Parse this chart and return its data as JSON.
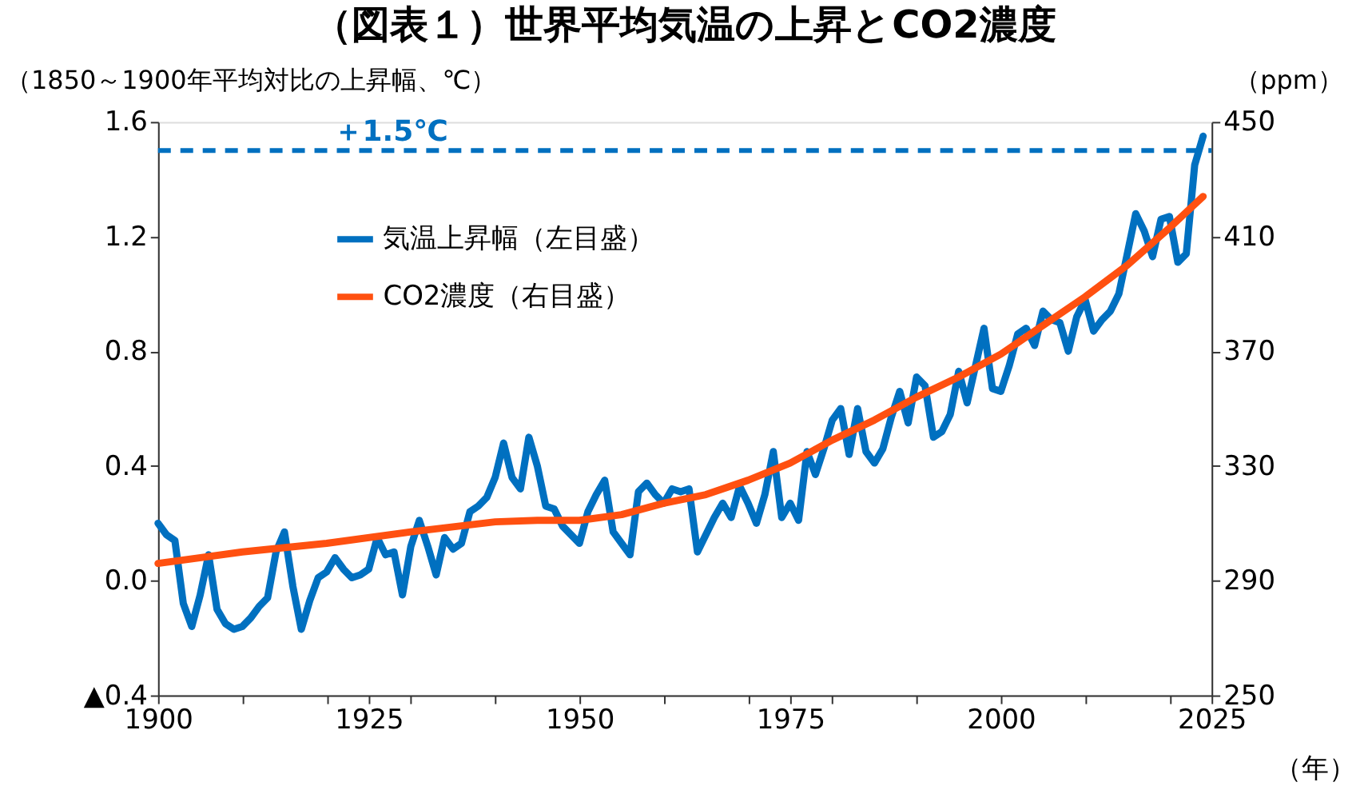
{
  "chart_data": {
    "type": "line",
    "title": "（図表１）世界平均気温の上昇とCO2濃度",
    "ylabel": "（1850～1900年平均対比の上昇幅、℃）",
    "y2label": "（ppm）",
    "xlabel": "（年）",
    "xlim": [
      1900,
      2025
    ],
    "xticks": [
      1900,
      {
        "value": 1910,
        "label": null
      },
      {
        "value": 1920,
        "label": null
      },
      1925,
      {
        "value": 1930,
        "label": null
      },
      {
        "value": 1940,
        "label": null
      },
      1950,
      {
        "value": 1960,
        "label": null
      },
      {
        "value": 1970,
        "label": null
      },
      1975,
      {
        "value": 1980,
        "label": null
      },
      {
        "value": 1990,
        "label": null
      },
      2000,
      {
        "value": 2010,
        "label": null
      },
      {
        "value": 2020,
        "label": null
      },
      2025
    ],
    "ylim": [
      -0.4,
      1.6
    ],
    "yticks": [
      {
        "value": -0.4,
        "label": "▲0.4"
      },
      {
        "value": 0,
        "label": "0.0"
      },
      0.4,
      0.8,
      1.2,
      1.6
    ],
    "y2lim": [
      250,
      450
    ],
    "y2ticks": [
      250,
      290,
      330,
      370,
      410,
      450
    ],
    "grid": false,
    "legend": "top left",
    "line_style": "solid",
    "marker": "none",
    "ref_lines": [
      {
        "axis": "y",
        "value": 1.5,
        "label": "＋1.5℃",
        "color": "#0070c0",
        "line_style": "dashed"
      }
    ],
    "series": [
      {
        "name": "気温上昇幅（左目盛）",
        "color": "#0070c0",
        "x": [
          1900,
          1901,
          1902,
          1903,
          1904,
          1905,
          1906,
          1907,
          1908,
          1909,
          1910,
          1911,
          1912,
          1913,
          1914,
          1915,
          1916,
          1917,
          1918,
          1919,
          1920,
          1921,
          1922,
          1923,
          1924,
          1925,
          1926,
          1927,
          1928,
          1929,
          1930,
          1931,
          1932,
          1933,
          1934,
          1935,
          1936,
          1937,
          1938,
          1939,
          1940,
          1941,
          1942,
          1943,
          1944,
          1945,
          1946,
          1947,
          1948,
          1949,
          1950,
          1951,
          1952,
          1953,
          1954,
          1955,
          1956,
          1957,
          1958,
          1959,
          1960,
          1961,
          1962,
          1963,
          1964,
          1965,
          1966,
          1967,
          1968,
          1969,
          1970,
          1971,
          1972,
          1973,
          1974,
          1975,
          1976,
          1977,
          1978,
          1979,
          1980,
          1981,
          1982,
          1983,
          1984,
          1985,
          1986,
          1987,
          1988,
          1989,
          1990,
          1991,
          1992,
          1993,
          1994,
          1995,
          1996,
          1997,
          1998,
          1999,
          2000,
          2001,
          2002,
          2003,
          2004,
          2005,
          2006,
          2007,
          2008,
          2009,
          2010,
          2011,
          2012,
          2013,
          2014,
          2015,
          2016,
          2017,
          2018,
          2019,
          2020,
          2021,
          2022,
          2023,
          2024
        ],
        "values": [
          0.2,
          0.16,
          0.14,
          -0.08,
          -0.16,
          -0.05,
          0.09,
          -0.1,
          -0.15,
          -0.17,
          -0.16,
          -0.13,
          -0.09,
          -0.06,
          0.1,
          0.17,
          -0.02,
          -0.17,
          -0.07,
          0.01,
          0.03,
          0.08,
          0.04,
          0.01,
          0.02,
          0.04,
          0.15,
          0.09,
          0.1,
          -0.05,
          0.12,
          0.21,
          0.12,
          0.02,
          0.15,
          0.11,
          0.13,
          0.24,
          0.26,
          0.29,
          0.36,
          0.48,
          0.36,
          0.32,
          0.5,
          0.4,
          0.26,
          0.25,
          0.19,
          0.16,
          0.13,
          0.24,
          0.3,
          0.35,
          0.17,
          0.13,
          0.09,
          0.31,
          0.34,
          0.3,
          0.27,
          0.32,
          0.31,
          0.32,
          0.1,
          0.16,
          0.22,
          0.27,
          0.22,
          0.33,
          0.27,
          0.2,
          0.3,
          0.45,
          0.22,
          0.27,
          0.21,
          0.45,
          0.37,
          0.46,
          0.56,
          0.6,
          0.44,
          0.6,
          0.45,
          0.41,
          0.46,
          0.57,
          0.66,
          0.55,
          0.71,
          0.68,
          0.5,
          0.52,
          0.58,
          0.73,
          0.62,
          0.75,
          0.88,
          0.67,
          0.66,
          0.75,
          0.86,
          0.88,
          0.82,
          0.94,
          0.91,
          0.9,
          0.8,
          0.92,
          0.98,
          0.87,
          0.91,
          0.94,
          1.0,
          1.14,
          1.28,
          1.22,
          1.13,
          1.26,
          1.27,
          1.11,
          1.14,
          1.45,
          1.55
        ]
      },
      {
        "name": "CO2濃度（右目盛）",
        "color": "#ff5010",
        "axis": "y2",
        "x": [
          1900,
          1910,
          1920,
          1930,
          1940,
          1945,
          1950,
          1955,
          1960,
          1965,
          1970,
          1975,
          1980,
          1985,
          1990,
          1995,
          2000,
          2005,
          2010,
          2015,
          2020,
          2024
        ],
        "values": [
          296,
          300,
          303,
          307,
          310.5,
          311,
          311,
          313,
          317,
          320,
          325,
          331,
          339,
          346,
          354,
          361,
          369,
          379,
          389,
          400,
          413,
          424
        ]
      }
    ]
  }
}
